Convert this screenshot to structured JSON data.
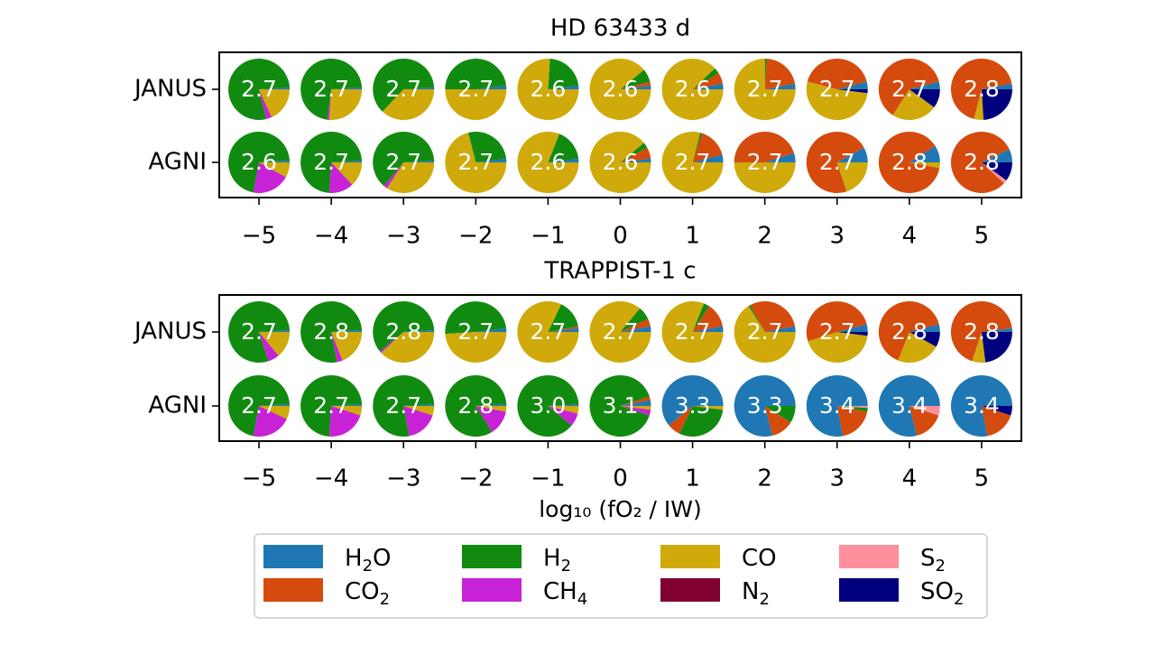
{
  "colors": {
    "H2O": "#1f78b4",
    "CO2": "#d44b0d",
    "H2": "#118a10",
    "CH4": "#c722d6",
    "CO": "#cfaa0a",
    "N2": "#800030",
    "S2": "#ff8f9a",
    "SO2": "#00007f"
  },
  "chart_data": [
    {
      "type": "pie",
      "title": "HD 63433 d",
      "x": [
        -5,
        -4,
        -3,
        -2,
        -1,
        0,
        1,
        2,
        3,
        4,
        5
      ],
      "x_tick_labels": [
        "−5",
        "−4",
        "−3",
        "−2",
        "−1",
        "0",
        "1",
        "2",
        "3",
        "4",
        "5"
      ],
      "rows": [
        {
          "label": "JANUS",
          "pies": [
            {
              "value_label": "2.7",
              "fractions": {
                "H2O": 0.01,
                "H2": 0.77,
                "CO": 0.18,
                "CH4": 0.03
              }
            },
            {
              "value_label": "2.7",
              "fractions": {
                "H2O": 0.01,
                "H2": 0.72,
                "CO": 0.26,
                "CH4": 0.01
              }
            },
            {
              "value_label": "2.7",
              "fractions": {
                "H2O": 0.01,
                "H2": 0.62,
                "CO": 0.37
              }
            },
            {
              "value_label": "2.7",
              "fractions": {
                "H2O": 0.02,
                "H2": 0.48,
                "CO": 0.5
              }
            },
            {
              "value_label": "2.6",
              "fractions": {
                "H2O": 0.02,
                "H2": 0.22,
                "CO": 0.76
              }
            },
            {
              "value_label": "2.6",
              "fractions": {
                "H2O": 0.02,
                "CO2": 0.02,
                "H2": 0.07,
                "CO": 0.89
              }
            },
            {
              "value_label": "2.6",
              "fractions": {
                "H2O": 0.03,
                "CO2": 0.06,
                "H2": 0.03,
                "CO": 0.88
              }
            },
            {
              "value_label": "2.7",
              "fractions": {
                "H2O": 0.03,
                "CO2": 0.21,
                "H2": 0.01,
                "CO": 0.75
              }
            },
            {
              "value_label": "2.7",
              "fractions": {
                "H2O": 0.04,
                "CO2": 0.42,
                "CO": 0.52,
                "SO2": 0.02
              }
            },
            {
              "value_label": "2.7",
              "fractions": {
                "H2O": 0.04,
                "CO2": 0.62,
                "CO": 0.24,
                "SO2": 0.1
              }
            },
            {
              "value_label": "2.8",
              "fractions": {
                "H2O": 0.03,
                "CO2": 0.68,
                "CO": 0.05,
                "SO2": 0.24
              }
            }
          ]
        },
        {
          "label": "AGNI",
          "pies": [
            {
              "value_label": "2.6",
              "fractions": {
                "H2O": 0.01,
                "H2": 0.71,
                "CO": 0.08,
                "CH4": 0.2
              }
            },
            {
              "value_label": "2.7",
              "fractions": {
                "H2O": 0.01,
                "H2": 0.73,
                "CO": 0.13,
                "CH4": 0.13
              }
            },
            {
              "value_label": "2.7",
              "fractions": {
                "H2O": 0.01,
                "H2": 0.63,
                "CO": 0.34,
                "CH4": 0.02
              }
            },
            {
              "value_label": "2.7",
              "fractions": {
                "H2O": 0.02,
                "H2": 0.27,
                "CO": 0.71
              }
            },
            {
              "value_label": "2.6",
              "fractions": {
                "H2O": 0.02,
                "H2": 0.17,
                "CO": 0.81
              }
            },
            {
              "value_label": "2.6",
              "fractions": {
                "H2O": 0.02,
                "CO2": 0.06,
                "H2": 0.03,
                "CO": 0.89
              }
            },
            {
              "value_label": "2.7",
              "fractions": {
                "H2O": 0.04,
                "CO2": 0.16,
                "H2": 0.01,
                "CO": 0.79
              }
            },
            {
              "value_label": "2.7",
              "fractions": {
                "H2O": 0.05,
                "CO2": 0.45,
                "CO": 0.5
              }
            },
            {
              "value_label": "2.7",
              "fractions": {
                "H2O": 0.08,
                "CO2": 0.72,
                "CO": 0.2
              }
            },
            {
              "value_label": "2.8",
              "fractions": {
                "H2O": 0.09,
                "CO2": 0.88,
                "CO": 0.03
              }
            },
            {
              "value_label": "2.8",
              "fractions": {
                "H2O": 0.07,
                "CO2": 0.81,
                "S2": 0.02,
                "SO2": 0.1
              }
            }
          ]
        }
      ]
    },
    {
      "type": "pie",
      "title": "TRAPPIST-1 c",
      "xlabel": "log₁₀ (fO₂ / IW)",
      "x": [
        -5,
        -4,
        -3,
        -2,
        -1,
        0,
        1,
        2,
        3,
        4,
        5
      ],
      "x_tick_labels": [
        "−5",
        "−4",
        "−3",
        "−2",
        "−1",
        "0",
        "1",
        "2",
        "3",
        "4",
        "5"
      ],
      "rows": [
        {
          "label": "JANUS",
          "pies": [
            {
              "value_label": "2.7",
              "fractions": {
                "H2O": 0.01,
                "H2": 0.79,
                "CO": 0.14,
                "CH4": 0.06
              }
            },
            {
              "value_label": "2.8",
              "fractions": {
                "H2O": 0.01,
                "H2": 0.77,
                "CO": 0.19,
                "CH4": 0.03
              }
            },
            {
              "value_label": "2.8",
              "fractions": {
                "H2O": 0.01,
                "H2": 0.6,
                "CO": 0.38,
                "CH4": 0.01
              }
            },
            {
              "value_label": "2.7",
              "fractions": {
                "H2O": 0.02,
                "H2": 0.49,
                "CO": 0.49
              }
            },
            {
              "value_label": "2.7",
              "fractions": {
                "H2O": 0.02,
                "CO2": 0.01,
                "H2": 0.15,
                "CO": 0.82
              }
            },
            {
              "value_label": "2.7",
              "fractions": {
                "H2O": 0.03,
                "CO2": 0.04,
                "H2": 0.07,
                "CO": 0.86
              }
            },
            {
              "value_label": "2.7",
              "fractions": {
                "H2O": 0.03,
                "CO2": 0.13,
                "H2": 0.03,
                "CO": 0.81
              }
            },
            {
              "value_label": "2.7",
              "fractions": {
                "H2O": 0.03,
                "CO2": 0.3,
                "H2": 0.01,
                "CO": 0.66
              }
            },
            {
              "value_label": "2.7",
              "fractions": {
                "H2O": 0.04,
                "CO2": 0.51,
                "CO": 0.43,
                "SO2": 0.02
              }
            },
            {
              "value_label": "2.8",
              "fractions": {
                "H2O": 0.04,
                "CO2": 0.65,
                "CO": 0.23,
                "SO2": 0.08
              }
            },
            {
              "value_label": "2.8",
              "fractions": {
                "H2O": 0.02,
                "CO2": 0.68,
                "CO": 0.07,
                "SO2": 0.23
              }
            }
          ]
        },
        {
          "label": "AGNI",
          "pies": [
            {
              "value_label": "2.7",
              "fractions": {
                "H2O": 0.01,
                "H2": 0.71,
                "CO": 0.07,
                "CH4": 0.21
              }
            },
            {
              "value_label": "2.7",
              "fractions": {
                "H2O": 0.01,
                "H2": 0.73,
                "CO": 0.05,
                "CH4": 0.21
              }
            },
            {
              "value_label": "2.7",
              "fractions": {
                "H2O": 0.01,
                "H2": 0.77,
                "CO": 0.05,
                "CH4": 0.17
              }
            },
            {
              "value_label": "2.8",
              "fractions": {
                "H2O": 0.01,
                "H2": 0.83,
                "CO": 0.03,
                "CH4": 0.13
              }
            },
            {
              "value_label": "3.0",
              "fractions": {
                "H2O": 0.01,
                "H2": 0.88,
                "CO": 0.04,
                "CH4": 0.07
              }
            },
            {
              "value_label": "3.1",
              "fractions": {
                "H2O": 0.03,
                "CO2": 0.02,
                "H2": 0.9,
                "CO": 0.02,
                "CH4": 0.03
              }
            },
            {
              "value_label": "3.3",
              "fractions": {
                "H2O": 0.61,
                "CO2": 0.07,
                "H2": 0.3,
                "CO": 0.02
              }
            },
            {
              "value_label": "3.3",
              "fractions": {
                "H2O": 0.79,
                "CO2": 0.12,
                "H2": 0.09
              }
            },
            {
              "value_label": "3.4",
              "fractions": {
                "H2O": 0.78,
                "CO2": 0.19,
                "H2": 0.02,
                "S2": 0.01
              }
            },
            {
              "value_label": "3.4",
              "fractions": {
                "H2O": 0.79,
                "CO2": 0.16,
                "S2": 0.05
              }
            },
            {
              "value_label": "3.4",
              "fractions": {
                "H2O": 0.78,
                "CO2": 0.17,
                "SO2": 0.05
              }
            }
          ]
        }
      ]
    }
  ],
  "legend": {
    "position": "bottom",
    "items": [
      {
        "key": "H2O",
        "base": "H",
        "sub": "2",
        "tail": "O"
      },
      {
        "key": "CO2",
        "base": "CO",
        "sub": "2",
        "tail": ""
      },
      {
        "key": "H2",
        "base": "H",
        "sub": "2",
        "tail": ""
      },
      {
        "key": "CH4",
        "base": "CH",
        "sub": "4",
        "tail": ""
      },
      {
        "key": "CO",
        "base": "CO",
        "sub": "",
        "tail": ""
      },
      {
        "key": "N2",
        "base": "N",
        "sub": "2",
        "tail": ""
      },
      {
        "key": "S2",
        "base": "S",
        "sub": "2",
        "tail": ""
      },
      {
        "key": "SO2",
        "base": "SO",
        "sub": "2",
        "tail": ""
      }
    ]
  }
}
